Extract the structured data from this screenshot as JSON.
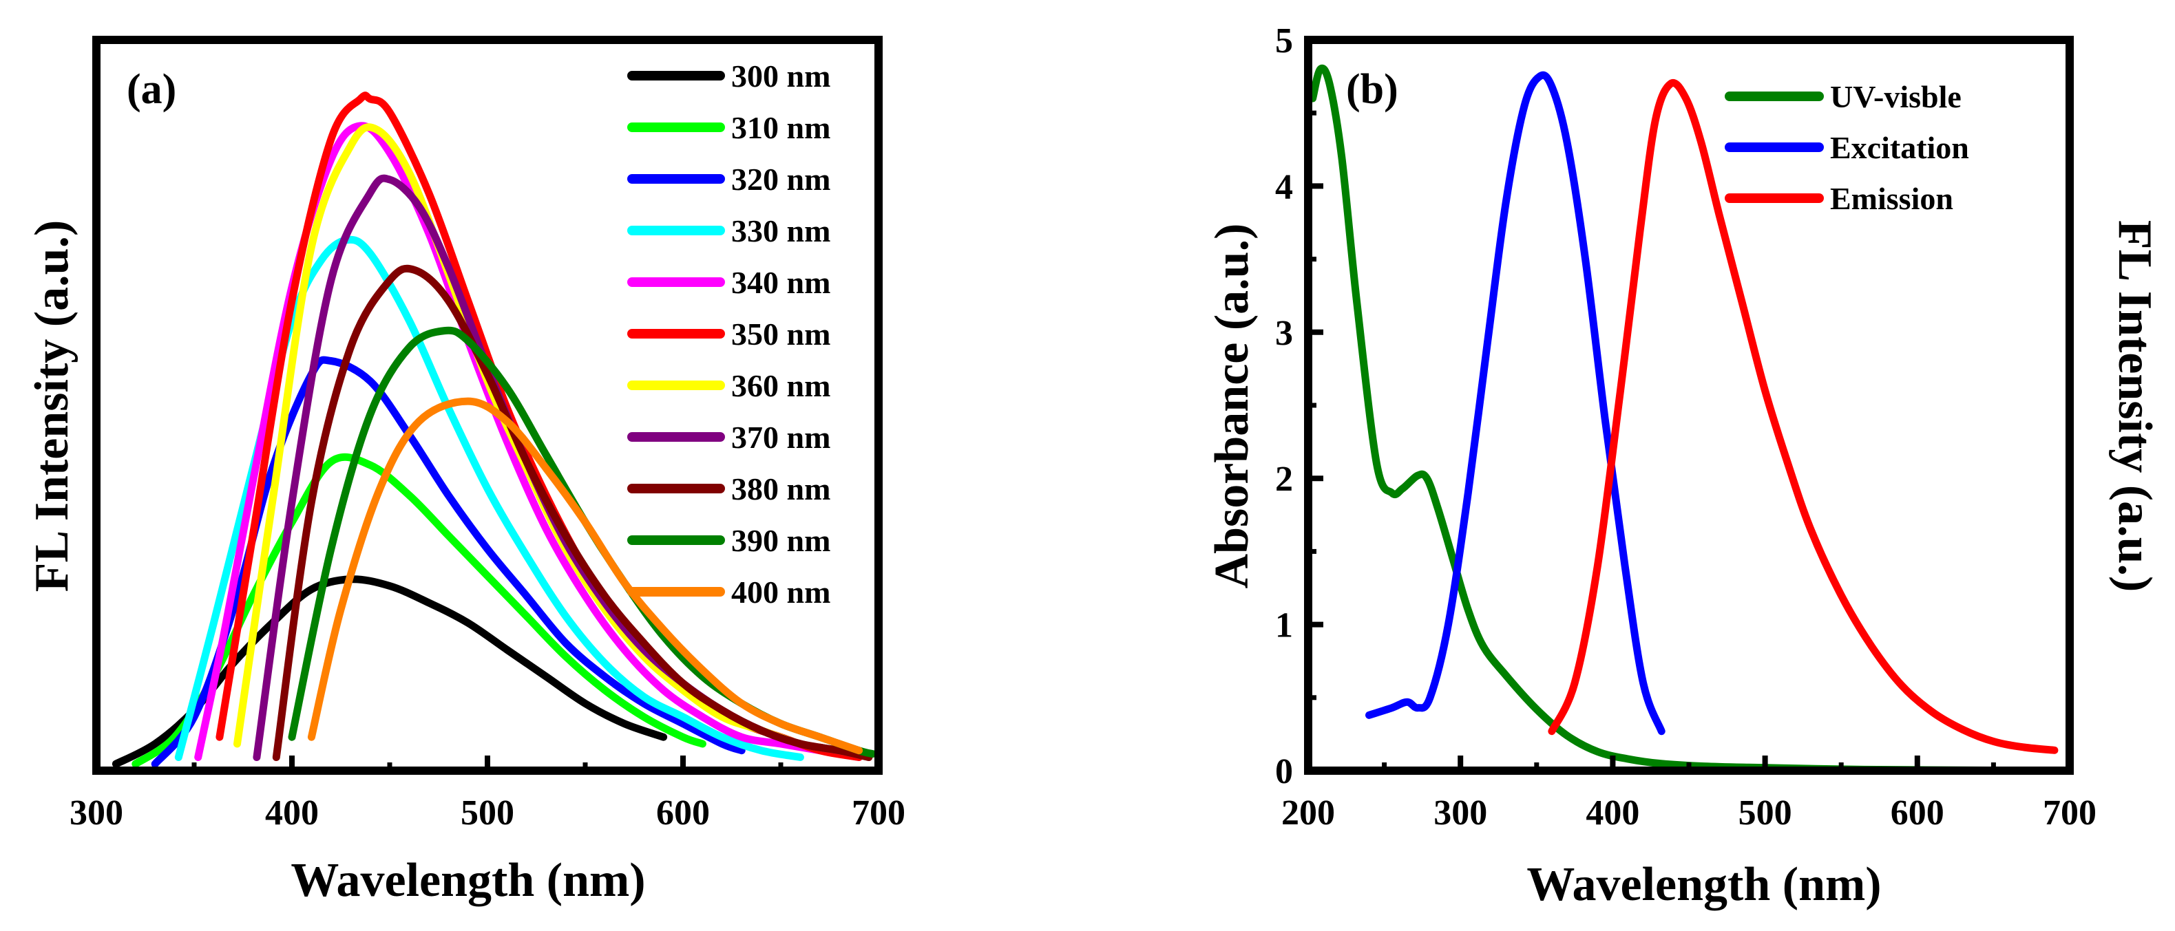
{
  "chart_data": [
    {
      "panel": "(a)",
      "type": "line",
      "xlabel": "Wavelength (nm)",
      "ylabel": "FL Intensity (a.u.)",
      "xlim": [
        300,
        700
      ],
      "ylim": [
        0,
        1.05
      ],
      "x_ticks": [
        300,
        400,
        500,
        600,
        700
      ],
      "x_tick_labels": [
        "300",
        "400",
        "500",
        "600",
        "700"
      ],
      "grid": false,
      "legend_position": "top-right",
      "series": [
        {
          "name": "300 nm",
          "color": "#000000",
          "x": [
            310,
            330,
            350,
            370,
            390,
            410,
            430,
            450,
            470,
            490,
            510,
            530,
            550,
            570,
            590
          ],
          "y": [
            0.01,
            0.04,
            0.09,
            0.16,
            0.22,
            0.27,
            0.285,
            0.275,
            0.25,
            0.22,
            0.18,
            0.14,
            0.1,
            0.07,
            0.05
          ]
        },
        {
          "name": "310 nm",
          "color": "#00ff00",
          "x": [
            320,
            340,
            360,
            380,
            400,
            420,
            440,
            460,
            480,
            500,
            520,
            540,
            560,
            580,
            600,
            610
          ],
          "y": [
            0.01,
            0.05,
            0.14,
            0.26,
            0.37,
            0.46,
            0.455,
            0.41,
            0.35,
            0.29,
            0.23,
            0.17,
            0.12,
            0.08,
            0.05,
            0.04
          ]
        },
        {
          "name": "320 nm",
          "color": "#0000ff",
          "x": [
            330,
            350,
            370,
            390,
            410,
            420,
            440,
            460,
            480,
            500,
            520,
            540,
            560,
            580,
            600,
            620,
            630
          ],
          "y": [
            0.01,
            0.08,
            0.24,
            0.45,
            0.59,
            0.61,
            0.58,
            0.5,
            0.41,
            0.33,
            0.26,
            0.19,
            0.14,
            0.1,
            0.07,
            0.04,
            0.03
          ]
        },
        {
          "name": "330 nm",
          "color": "#00ffff",
          "x": [
            342,
            360,
            380,
            400,
            415,
            428,
            440,
            460,
            480,
            500,
            520,
            540,
            560,
            580,
            600,
            620,
            640,
            660
          ],
          "y": [
            0.02,
            0.22,
            0.45,
            0.67,
            0.76,
            0.79,
            0.77,
            0.67,
            0.54,
            0.42,
            0.32,
            0.23,
            0.16,
            0.11,
            0.08,
            0.05,
            0.03,
            0.02
          ]
        },
        {
          "name": "340 nm",
          "color": "#ff00ff",
          "x": [
            352,
            365,
            380,
            400,
            420,
            435,
            450,
            470,
            490,
            510,
            530,
            550,
            570,
            590,
            610,
            630,
            650,
            670,
            690
          ],
          "y": [
            0.02,
            0.2,
            0.43,
            0.72,
            0.91,
            0.96,
            0.92,
            0.8,
            0.64,
            0.49,
            0.36,
            0.26,
            0.18,
            0.12,
            0.08,
            0.05,
            0.04,
            0.03,
            0.02
          ]
        },
        {
          "name": "350 nm",
          "color": "#ff0000",
          "x": [
            363,
            380,
            400,
            420,
            435,
            440,
            450,
            470,
            490,
            510,
            530,
            550,
            570,
            590,
            610,
            630,
            650,
            670,
            690
          ],
          "y": [
            0.05,
            0.35,
            0.7,
            0.94,
            1.0,
            1.0,
            0.98,
            0.86,
            0.7,
            0.54,
            0.41,
            0.3,
            0.21,
            0.15,
            0.1,
            0.07,
            0.05,
            0.03,
            0.02
          ]
        },
        {
          "name": "360 nm",
          "color": "#ffff00",
          "x": [
            372,
            390,
            410,
            430,
            443,
            460,
            480,
            500,
            520,
            540,
            560,
            580,
            600,
            620,
            640,
            660,
            680,
            695
          ],
          "y": [
            0.04,
            0.4,
            0.78,
            0.93,
            0.955,
            0.89,
            0.74,
            0.58,
            0.45,
            0.33,
            0.24,
            0.17,
            0.12,
            0.08,
            0.06,
            0.04,
            0.03,
            0.02
          ]
        },
        {
          "name": "370 nm",
          "color": "#800080",
          "x": [
            382,
            400,
            420,
            440,
            450,
            465,
            480,
            500,
            520,
            540,
            560,
            580,
            600,
            620,
            640,
            660,
            680,
            695
          ],
          "y": [
            0.02,
            0.4,
            0.73,
            0.86,
            0.88,
            0.84,
            0.75,
            0.6,
            0.46,
            0.34,
            0.25,
            0.18,
            0.13,
            0.09,
            0.06,
            0.04,
            0.03,
            0.02
          ]
        },
        {
          "name": "380 nm",
          "color": "#800000",
          "x": [
            392,
            410,
            430,
            450,
            463,
            480,
            500,
            520,
            540,
            560,
            580,
            600,
            620,
            640,
            660,
            680,
            695
          ],
          "y": [
            0.02,
            0.4,
            0.63,
            0.73,
            0.745,
            0.7,
            0.59,
            0.46,
            0.35,
            0.26,
            0.19,
            0.13,
            0.09,
            0.06,
            0.04,
            0.03,
            0.02
          ]
        },
        {
          "name": "390 nm",
          "color": "#008000",
          "x": [
            400,
            420,
            440,
            460,
            478,
            490,
            510,
            530,
            550,
            570,
            590,
            610,
            630,
            650,
            670,
            690,
            697
          ],
          "y": [
            0.05,
            0.33,
            0.53,
            0.63,
            0.655,
            0.64,
            0.57,
            0.47,
            0.37,
            0.28,
            0.2,
            0.14,
            0.1,
            0.07,
            0.05,
            0.03,
            0.025
          ]
        },
        {
          "name": "400 nm",
          "color": "#ff8000",
          "x": [
            410,
            425,
            445,
            465,
            490,
            510,
            530,
            550,
            570,
            590,
            610,
            630,
            650,
            670,
            690
          ],
          "y": [
            0.05,
            0.24,
            0.42,
            0.52,
            0.55,
            0.52,
            0.45,
            0.37,
            0.28,
            0.21,
            0.15,
            0.1,
            0.07,
            0.05,
            0.03
          ]
        }
      ]
    },
    {
      "panel": "(b)",
      "type": "line",
      "xlabel": "Wavelength (nm)",
      "ylabel": "Absorbance (a.u.)",
      "ylabel_right": "FL Intensity (a.u.)",
      "xlim": [
        200,
        700
      ],
      "ylim": [
        0,
        5
      ],
      "x_ticks": [
        200,
        300,
        400,
        500,
        600,
        700
      ],
      "x_tick_labels": [
        "200",
        "300",
        "400",
        "500",
        "600",
        "700"
      ],
      "y_ticks": [
        0,
        1,
        2,
        3,
        4,
        5
      ],
      "y_tick_labels": [
        "0",
        "1",
        "2",
        "3",
        "4",
        "5"
      ],
      "grid": false,
      "legend_position": "top-right",
      "series": [
        {
          "name": "UV-visble",
          "color": "#008000",
          "x": [
            203,
            208,
            214,
            222,
            232,
            245,
            255,
            262,
            272,
            278,
            285,
            295,
            305,
            315,
            330,
            350,
            370,
            390,
            410,
            430,
            460,
            500,
            550,
            600,
            700
          ],
          "y": [
            4.6,
            4.8,
            4.7,
            4.2,
            3.2,
            2.1,
            1.9,
            1.93,
            2.02,
            2.0,
            1.8,
            1.45,
            1.1,
            0.85,
            0.65,
            0.42,
            0.24,
            0.13,
            0.08,
            0.05,
            0.03,
            0.02,
            0.01,
            0.005,
            0.0
          ]
        },
        {
          "name": "Excitation",
          "color": "#0000ff",
          "x": [
            240,
            255,
            265,
            272,
            280,
            292,
            305,
            318,
            330,
            342,
            352,
            360,
            370,
            382,
            395,
            408,
            420,
            432
          ],
          "y": [
            0.38,
            0.43,
            0.47,
            0.43,
            0.5,
            1.0,
            1.9,
            2.95,
            3.9,
            4.55,
            4.75,
            4.68,
            4.3,
            3.5,
            2.4,
            1.4,
            0.6,
            0.27
          ]
        },
        {
          "name": "Emission",
          "color": "#ff0000",
          "x": [
            360,
            375,
            390,
            405,
            418,
            428,
            438,
            448,
            458,
            470,
            485,
            500,
            515,
            530,
            550,
            570,
            590,
            610,
            630,
            650,
            670,
            690
          ],
          "y": [
            0.27,
            0.6,
            1.4,
            2.6,
            3.7,
            4.45,
            4.7,
            4.6,
            4.3,
            3.8,
            3.2,
            2.6,
            2.1,
            1.65,
            1.2,
            0.85,
            0.58,
            0.4,
            0.28,
            0.2,
            0.16,
            0.14
          ]
        }
      ]
    }
  ]
}
